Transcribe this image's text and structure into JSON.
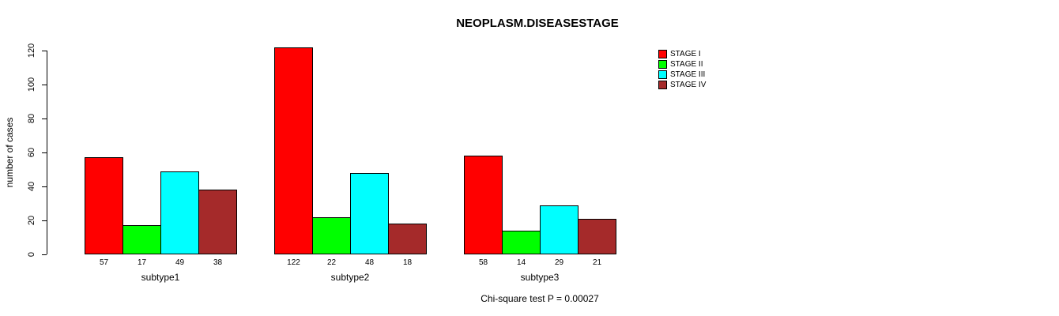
{
  "title": "NEOPLASM.DISEASESTAGE",
  "ylabel": "number of cases",
  "footnote": "Chi-square test P = 0.00027",
  "chart_data": {
    "type": "bar",
    "title": "NEOPLASM.DISEASESTAGE",
    "xlabel": "",
    "ylabel": "number of cases",
    "categories": [
      "subtype1",
      "subtype2",
      "subtype3"
    ],
    "series": [
      {
        "name": "STAGE I",
        "color": "#FF0000",
        "values": [
          57,
          122,
          58
        ]
      },
      {
        "name": "STAGE II",
        "color": "#00FF00",
        "values": [
          17,
          22,
          14
        ]
      },
      {
        "name": "STAGE III",
        "color": "#00FFFF",
        "values": [
          49,
          48,
          29
        ]
      },
      {
        "name": "STAGE IV",
        "color": "#A52A2A",
        "values": [
          38,
          18,
          21
        ]
      }
    ],
    "bar_value_labels": [
      [
        57,
        17,
        49,
        38
      ],
      [
        122,
        22,
        48,
        18
      ],
      [
        58,
        14,
        29,
        21
      ]
    ],
    "yticks": [
      0,
      20,
      40,
      60,
      80,
      100,
      120
    ],
    "ylim": [
      0,
      120
    ],
    "grid": false,
    "legend_position": "right",
    "annotation": "Chi-square test P = 0.00027"
  }
}
